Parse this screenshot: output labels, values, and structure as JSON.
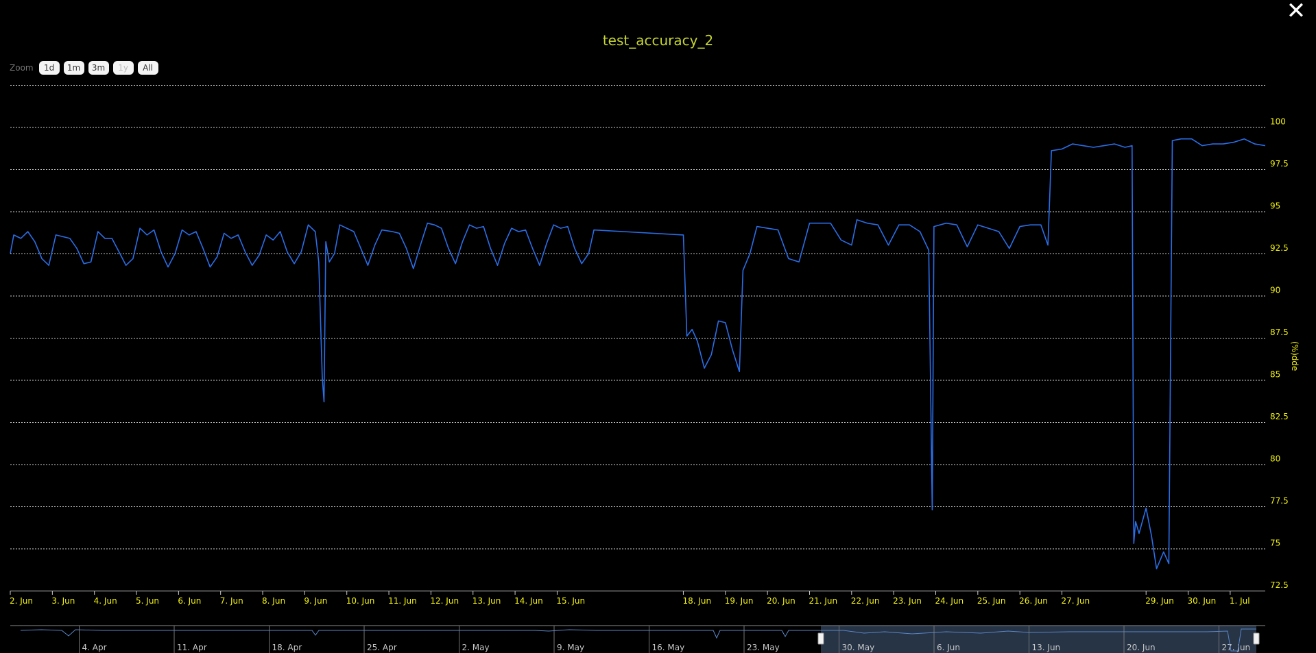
{
  "close_icon": "close-icon",
  "zoom": {
    "label": "Zoom",
    "buttons": [
      {
        "label": "1d",
        "enabled": true
      },
      {
        "label": "1m",
        "enabled": true
      },
      {
        "label": "3m",
        "enabled": true
      },
      {
        "label": "1y",
        "enabled": false
      },
      {
        "label": "All",
        "enabled": true
      }
    ]
  },
  "chart_data": {
    "type": "line",
    "title": "test_accuracy_2",
    "xlabel": "",
    "ylabel": "(%)dde",
    "ylim": [
      72.5,
      102.5
    ],
    "yticks": [
      72.5,
      75,
      77.5,
      80,
      82.5,
      85,
      87.5,
      90,
      92.5,
      95,
      97.5,
      100
    ],
    "ytick_labels": [
      "72.5",
      "75",
      "77.5",
      "80",
      "82.5",
      "85",
      "87.5",
      "90",
      "92.5",
      "95",
      "97.5",
      "100"
    ],
    "xlim": [
      "2025-06-02",
      "2025-07-01T20:00"
    ],
    "xticks": [
      {
        "label": "2. Jun",
        "date": "2025-06-02"
      },
      {
        "label": "3. Jun",
        "date": "2025-06-03"
      },
      {
        "label": "4. Jun",
        "date": "2025-06-04"
      },
      {
        "label": "5. Jun",
        "date": "2025-06-05"
      },
      {
        "label": "6. Jun",
        "date": "2025-06-06"
      },
      {
        "label": "7. Jun",
        "date": "2025-06-07"
      },
      {
        "label": "8. Jun",
        "date": "2025-06-08"
      },
      {
        "label": "9. Jun",
        "date": "2025-06-09"
      },
      {
        "label": "10. Jun",
        "date": "2025-06-10"
      },
      {
        "label": "11. Jun",
        "date": "2025-06-11"
      },
      {
        "label": "12. Jun",
        "date": "2025-06-12"
      },
      {
        "label": "13. Jun",
        "date": "2025-06-13"
      },
      {
        "label": "14. Jun",
        "date": "2025-06-14"
      },
      {
        "label": "15. Jun",
        "date": "2025-06-15"
      },
      {
        "label": "18. Jun",
        "date": "2025-06-18"
      },
      {
        "label": "19. Jun",
        "date": "2025-06-19"
      },
      {
        "label": "20. Jun",
        "date": "2025-06-20"
      },
      {
        "label": "21. Jun",
        "date": "2025-06-21"
      },
      {
        "label": "22. Jun",
        "date": "2025-06-22"
      },
      {
        "label": "23. Jun",
        "date": "2025-06-23"
      },
      {
        "label": "24. Jun",
        "date": "2025-06-24"
      },
      {
        "label": "25. Jun",
        "date": "2025-06-25"
      },
      {
        "label": "26. Jun",
        "date": "2025-06-26"
      },
      {
        "label": "27. Jun",
        "date": "2025-06-27"
      },
      {
        "label": "29. Jun",
        "date": "2025-06-29"
      },
      {
        "label": "30. Jun",
        "date": "2025-06-30"
      },
      {
        "label": "1. Jul",
        "date": "2025-07-01"
      }
    ],
    "grid": true,
    "line_color": "#2a6ee8",
    "series": [
      {
        "points": [
          [
            "2025-06-02T00:00",
            92.5
          ],
          [
            "2025-06-02T02:00",
            93.6
          ],
          [
            "2025-06-02T06:00",
            93.4
          ],
          [
            "2025-06-02T10:00",
            93.8
          ],
          [
            "2025-06-02T14:00",
            93.2
          ],
          [
            "2025-06-02T18:00",
            92.2
          ],
          [
            "2025-06-02T22:00",
            91.8
          ],
          [
            "2025-06-03T02:00",
            93.6
          ],
          [
            "2025-06-03T06:00",
            93.5
          ],
          [
            "2025-06-03T10:00",
            93.4
          ],
          [
            "2025-06-03T14:00",
            92.8
          ],
          [
            "2025-06-03T18:00",
            91.9
          ],
          [
            "2025-06-03T22:00",
            92.0
          ],
          [
            "2025-06-04T02:00",
            93.8
          ],
          [
            "2025-06-04T06:00",
            93.4
          ],
          [
            "2025-06-04T10:00",
            93.4
          ],
          [
            "2025-06-04T14:00",
            92.6
          ],
          [
            "2025-06-04T18:00",
            91.8
          ],
          [
            "2025-06-04T22:00",
            92.2
          ],
          [
            "2025-06-05T02:00",
            94.0
          ],
          [
            "2025-06-05T06:00",
            93.6
          ],
          [
            "2025-06-05T10:00",
            93.9
          ],
          [
            "2025-06-05T14:00",
            92.6
          ],
          [
            "2025-06-05T18:00",
            91.7
          ],
          [
            "2025-06-05T22:00",
            92.5
          ],
          [
            "2025-06-06T02:00",
            93.9
          ],
          [
            "2025-06-06T06:00",
            93.6
          ],
          [
            "2025-06-06T10:00",
            93.8
          ],
          [
            "2025-06-06T14:00",
            92.8
          ],
          [
            "2025-06-06T18:00",
            91.7
          ],
          [
            "2025-06-06T22:00",
            92.3
          ],
          [
            "2025-06-07T02:00",
            93.7
          ],
          [
            "2025-06-07T06:00",
            93.4
          ],
          [
            "2025-06-07T10:00",
            93.6
          ],
          [
            "2025-06-07T14:00",
            92.6
          ],
          [
            "2025-06-07T18:00",
            91.8
          ],
          [
            "2025-06-07T22:00",
            92.4
          ],
          [
            "2025-06-08T02:00",
            93.6
          ],
          [
            "2025-06-08T06:00",
            93.3
          ],
          [
            "2025-06-08T10:00",
            93.8
          ],
          [
            "2025-06-08T14:00",
            92.6
          ],
          [
            "2025-06-08T18:00",
            91.9
          ],
          [
            "2025-06-08T22:00",
            92.6
          ],
          [
            "2025-06-09T02:00",
            94.2
          ],
          [
            "2025-06-09T06:00",
            93.8
          ],
          [
            "2025-06-09T08:00",
            92.0
          ],
          [
            "2025-06-09T10:00",
            85.2
          ],
          [
            "2025-06-09T11:00",
            83.7
          ],
          [
            "2025-06-09T12:00",
            93.2
          ],
          [
            "2025-06-09T14:00",
            92.0
          ],
          [
            "2025-06-09T17:00",
            92.5
          ],
          [
            "2025-06-09T20:00",
            94.2
          ],
          [
            "2025-06-10T00:00",
            94.0
          ],
          [
            "2025-06-10T04:00",
            93.8
          ],
          [
            "2025-06-10T08:00",
            92.8
          ],
          [
            "2025-06-10T12:00",
            91.8
          ],
          [
            "2025-06-10T16:00",
            93.0
          ],
          [
            "2025-06-10T20:00",
            93.9
          ],
          [
            "2025-06-11T02:00",
            93.8
          ],
          [
            "2025-06-11T06:00",
            93.7
          ],
          [
            "2025-06-11T10:00",
            92.8
          ],
          [
            "2025-06-11T14:00",
            91.6
          ],
          [
            "2025-06-11T18:00",
            93.0
          ],
          [
            "2025-06-11T22:00",
            94.3
          ],
          [
            "2025-06-12T02:00",
            94.2
          ],
          [
            "2025-06-12T06:00",
            94.0
          ],
          [
            "2025-06-12T10:00",
            92.8
          ],
          [
            "2025-06-12T14:00",
            91.9
          ],
          [
            "2025-06-12T18:00",
            93.2
          ],
          [
            "2025-06-12T22:00",
            94.2
          ],
          [
            "2025-06-13T02:00",
            94.0
          ],
          [
            "2025-06-13T06:00",
            94.1
          ],
          [
            "2025-06-13T10:00",
            92.8
          ],
          [
            "2025-06-13T14:00",
            91.8
          ],
          [
            "2025-06-13T18:00",
            93.1
          ],
          [
            "2025-06-13T22:00",
            94.0
          ],
          [
            "2025-06-14T02:00",
            93.8
          ],
          [
            "2025-06-14T06:00",
            93.9
          ],
          [
            "2025-06-14T10:00",
            92.8
          ],
          [
            "2025-06-14T14:00",
            91.8
          ],
          [
            "2025-06-14T18:00",
            93.1
          ],
          [
            "2025-06-14T22:00",
            94.2
          ],
          [
            "2025-06-15T02:00",
            94.0
          ],
          [
            "2025-06-15T06:00",
            94.1
          ],
          [
            "2025-06-15T10:00",
            92.8
          ],
          [
            "2025-06-15T14:00",
            91.9
          ],
          [
            "2025-06-15T18:00",
            92.5
          ],
          [
            "2025-06-15T21:00",
            93.9
          ],
          [
            "2025-06-18T00:00",
            93.6
          ],
          [
            "2025-06-18T02:00",
            87.6
          ],
          [
            "2025-06-18T05:00",
            88.0
          ],
          [
            "2025-06-18T08:00",
            87.3
          ],
          [
            "2025-06-18T12:00",
            85.7
          ],
          [
            "2025-06-18T16:00",
            86.5
          ],
          [
            "2025-06-18T20:00",
            88.5
          ],
          [
            "2025-06-19T00:00",
            88.4
          ],
          [
            "2025-06-19T04:00",
            86.8
          ],
          [
            "2025-06-19T08:00",
            85.5
          ],
          [
            "2025-06-19T10:00",
            91.5
          ],
          [
            "2025-06-19T14:00",
            92.5
          ],
          [
            "2025-06-19T18:00",
            94.1
          ],
          [
            "2025-06-20T00:00",
            94.0
          ],
          [
            "2025-06-20T06:00",
            93.9
          ],
          [
            "2025-06-20T12:00",
            92.2
          ],
          [
            "2025-06-20T18:00",
            92.0
          ],
          [
            "2025-06-21T00:00",
            94.3
          ],
          [
            "2025-06-21T06:00",
            94.3
          ],
          [
            "2025-06-21T12:00",
            94.3
          ],
          [
            "2025-06-21T18:00",
            93.3
          ],
          [
            "2025-06-22T00:00",
            93.0
          ],
          [
            "2025-06-22T03:00",
            94.5
          ],
          [
            "2025-06-22T09:00",
            94.3
          ],
          [
            "2025-06-22T15:00",
            94.2
          ],
          [
            "2025-06-22T21:00",
            93.0
          ],
          [
            "2025-06-23T03:00",
            94.2
          ],
          [
            "2025-06-23T09:00",
            94.2
          ],
          [
            "2025-06-23T15:00",
            93.8
          ],
          [
            "2025-06-23T20:00",
            92.7
          ],
          [
            "2025-06-23T22:00",
            77.3
          ],
          [
            "2025-06-23T23:00",
            94.1
          ],
          [
            "2025-06-24T06:00",
            94.3
          ],
          [
            "2025-06-24T12:00",
            94.2
          ],
          [
            "2025-06-24T18:00",
            92.9
          ],
          [
            "2025-06-25T00:00",
            94.2
          ],
          [
            "2025-06-25T06:00",
            94.0
          ],
          [
            "2025-06-25T12:00",
            93.8
          ],
          [
            "2025-06-25T18:00",
            92.8
          ],
          [
            "2025-06-26T00:00",
            94.1
          ],
          [
            "2025-06-26T06:00",
            94.2
          ],
          [
            "2025-06-26T12:00",
            94.2
          ],
          [
            "2025-06-26T16:00",
            93.0
          ],
          [
            "2025-06-26T18:00",
            98.6
          ],
          [
            "2025-06-27T00:00",
            98.7
          ],
          [
            "2025-06-27T06:00",
            99.0
          ],
          [
            "2025-06-27T12:00",
            98.9
          ],
          [
            "2025-06-27T18:00",
            98.8
          ],
          [
            "2025-06-28T00:00",
            98.9
          ],
          [
            "2025-06-28T06:00",
            99.0
          ],
          [
            "2025-06-28T12:00",
            98.8
          ],
          [
            "2025-06-28T16:00",
            98.9
          ],
          [
            "2025-06-28T17:00",
            75.3
          ],
          [
            "2025-06-28T18:00",
            76.6
          ],
          [
            "2025-06-28T20:00",
            75.9
          ],
          [
            "2025-06-29T00:00",
            77.4
          ],
          [
            "2025-06-29T03:00",
            75.8
          ],
          [
            "2025-06-29T06:00",
            73.8
          ],
          [
            "2025-06-29T10:00",
            74.8
          ],
          [
            "2025-06-29T13:00",
            74.1
          ],
          [
            "2025-06-29T15:00",
            99.2
          ],
          [
            "2025-06-29T20:00",
            99.3
          ],
          [
            "2025-06-30T02:00",
            99.3
          ],
          [
            "2025-06-30T08:00",
            98.9
          ],
          [
            "2025-06-30T14:00",
            99.0
          ],
          [
            "2025-06-30T20:00",
            99.0
          ],
          [
            "2025-07-01T02:00",
            99.1
          ],
          [
            "2025-07-01T08:00",
            99.3
          ],
          [
            "2025-07-01T14:00",
            99.0
          ],
          [
            "2025-07-01T20:00",
            98.9
          ]
        ]
      }
    ],
    "navigator": {
      "labels": [
        "4. Apr",
        "11. Apr",
        "18. Apr",
        "25. Apr",
        "2. May",
        "9. May",
        "16. May",
        "23. May",
        "30. May",
        "6. Jun",
        "13. Jun",
        "20. Jun",
        "27. Jun"
      ],
      "selected_range": [
        "2025-06-02",
        "2025-07-01T20:00"
      ]
    }
  }
}
